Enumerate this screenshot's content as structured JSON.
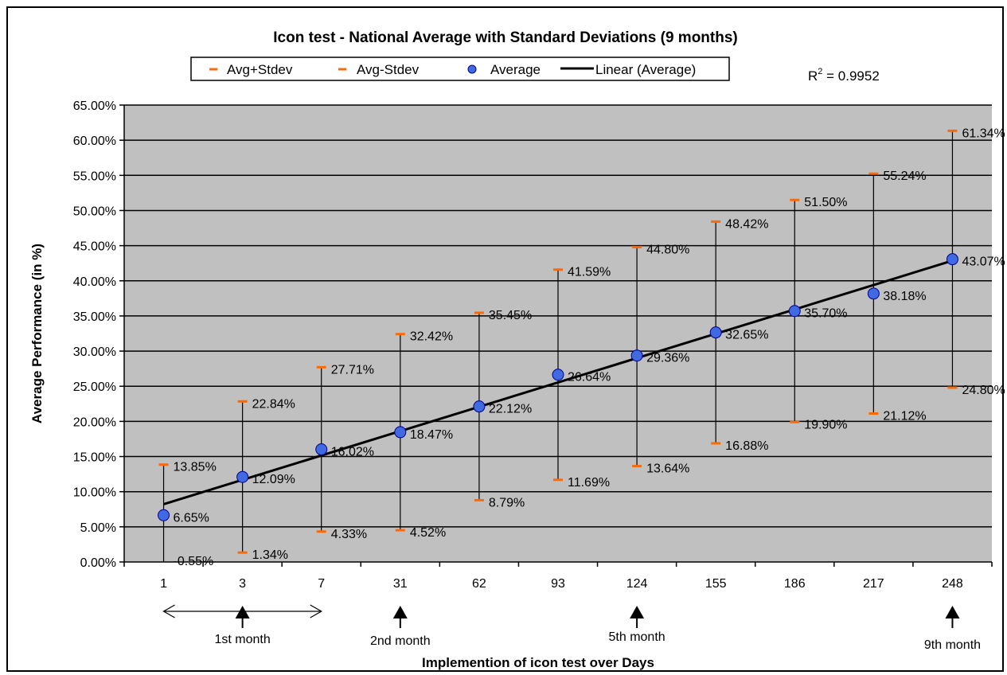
{
  "chart_data": {
    "type": "scatter",
    "title": "Icon test - National Average with Standard Deviations (9 months)",
    "xlabel": "Implemention of icon test over Days",
    "ylabel": "Average Performance (in %)",
    "categories": [
      "1",
      "3",
      "7",
      "31",
      "62",
      "93",
      "124",
      "155",
      "186",
      "217",
      "248"
    ],
    "ylim": [
      0,
      65
    ],
    "y_tick_labels": [
      "0.00%",
      "5.00%",
      "10.00%",
      "15.00%",
      "20.00%",
      "25.00%",
      "30.00%",
      "35.00%",
      "40.00%",
      "45.00%",
      "50.00%",
      "55.00%",
      "60.00%",
      "65.00%"
    ],
    "grid": true,
    "series": [
      {
        "name": "Avg+Stdev",
        "values": [
          13.85,
          22.84,
          27.71,
          32.42,
          35.45,
          41.59,
          44.8,
          48.42,
          51.5,
          55.24,
          61.34
        ],
        "labels": [
          "13.85%",
          "22.84%",
          "27.71%",
          "32.42%",
          "35.45%",
          "41.59%",
          "44.80%",
          "48.42%",
          "51.50%",
          "55.24%",
          "61.34%"
        ]
      },
      {
        "name": "Avg-Stdev",
        "values": [
          -0.55,
          1.34,
          4.33,
          4.52,
          8.79,
          11.69,
          13.64,
          16.88,
          19.9,
          21.12,
          24.8
        ],
        "labels": [
          "-0.55%",
          "1.34%",
          "4.33%",
          "4.52%",
          "8.79%",
          "11.69%",
          "13.64%",
          "16.88%",
          "19.90%",
          "21.12%",
          "24.80%"
        ]
      },
      {
        "name": "Average",
        "values": [
          6.65,
          12.09,
          16.02,
          18.47,
          22.12,
          26.64,
          29.36,
          32.65,
          35.7,
          38.18,
          43.07
        ],
        "labels": [
          "6.65%",
          "12.09%",
          "16.02%",
          "18.47%",
          "22.12%",
          "26.64%",
          "29.36%",
          "32.65%",
          "35.70%",
          "38.18%",
          "43.07%"
        ]
      },
      {
        "name": "Linear (Average)",
        "trendline": true,
        "r_squared_label": "R",
        "r_squared_exp": "2",
        "r_squared_value": " = 0.9952"
      }
    ],
    "legend_position": "top",
    "colors": {
      "plot_bg": "#c0c0c0",
      "marker": "#4169e1",
      "stdev": "#ff6a00",
      "trend": "#000000"
    },
    "annotations": [
      {
        "text": "1st month",
        "arrow_category": "3",
        "span": [
          "1",
          "7"
        ]
      },
      {
        "text": "2nd month",
        "arrow_category": "31"
      },
      {
        "text": "5th month",
        "arrow_category": "124"
      },
      {
        "text": "9th month",
        "arrow_category": "248"
      }
    ]
  }
}
